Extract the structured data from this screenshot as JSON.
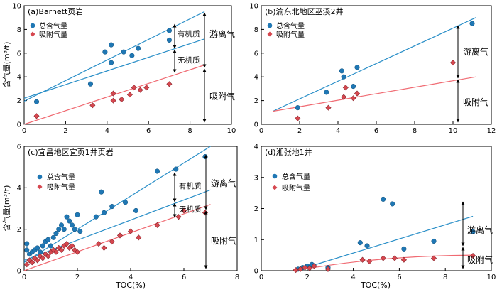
{
  "chart_data": [
    {
      "type": "scatter",
      "title": "(a)Barnett页岩",
      "xlabel": "",
      "ylabel": "含气量(m³/t)",
      "xlim": [
        0,
        10
      ],
      "ylim": [
        0,
        10
      ],
      "xticks": [
        0,
        2,
        4,
        6,
        8,
        10
      ],
      "yticks": [
        0,
        2,
        4,
        6,
        8,
        10
      ],
      "series": [
        {
          "name": "总含气量",
          "color": "#1f77b4",
          "points": [
            [
              0.6,
              1.9
            ],
            [
              3.2,
              3.4
            ],
            [
              3.9,
              6.1
            ],
            [
              4.2,
              6.7
            ],
            [
              4.2,
              5.2
            ],
            [
              4.8,
              6.1
            ],
            [
              5.2,
              5.8
            ],
            [
              5.5,
              6.4
            ],
            [
              7.0,
              7.1
            ],
            [
              7.0,
              7.9
            ]
          ]
        },
        {
          "name": "吸附气量",
          "color": "#d6474f",
          "points": [
            [
              0.6,
              0.7
            ],
            [
              3.3,
              1.6
            ],
            [
              4.3,
              2.0
            ],
            [
              4.3,
              2.6
            ],
            [
              4.7,
              2.1
            ],
            [
              5.1,
              2.5
            ],
            [
              5.3,
              3.1
            ],
            [
              5.6,
              2.9
            ],
            [
              5.9,
              3.1
            ],
            [
              7.0,
              3.4
            ]
          ]
        }
      ],
      "lines": [
        {
          "color": "#2a8fc8",
          "from": [
            0,
            1.95
          ],
          "to": [
            8.7,
            9.5
          ]
        },
        {
          "color": "#2a8fc8",
          "from": [
            0,
            2.2
          ],
          "to": [
            8.7,
            7.2
          ]
        },
        {
          "color": "#f06a72",
          "from": [
            0,
            0
          ],
          "to": [
            8.7,
            5.0
          ]
        }
      ],
      "annotations": [
        "有机质",
        "无机质",
        "游离气",
        "吸附气"
      ],
      "legend_position": "top-left"
    },
    {
      "type": "scatter",
      "title": "(b)渝东北地区巫溪2井",
      "xlabel": "",
      "ylabel": "",
      "xlim": [
        0,
        12
      ],
      "ylim": [
        0,
        10
      ],
      "xticks": [
        0,
        2,
        4,
        6,
        8,
        10,
        12
      ],
      "yticks": [
        0,
        2,
        4,
        6,
        8,
        10
      ],
      "series": [
        {
          "name": "总含气量",
          "color": "#1f77b4",
          "points": [
            [
              1.9,
              1.4
            ],
            [
              3.4,
              2.7
            ],
            [
              4.2,
              4.5
            ],
            [
              4.3,
              4.0
            ],
            [
              4.8,
              3.2
            ],
            [
              5.0,
              4.8
            ],
            [
              11.0,
              8.5
            ]
          ]
        },
        {
          "name": "吸附气量",
          "color": "#d6474f",
          "points": [
            [
              1.9,
              0.5
            ],
            [
              3.5,
              1.4
            ],
            [
              4.3,
              2.3
            ],
            [
              4.4,
              3.1
            ],
            [
              4.8,
              2.2
            ],
            [
              5.0,
              2.6
            ],
            [
              10.0,
              5.2
            ]
          ]
        }
      ],
      "lines": [
        {
          "color": "#2a8fc8",
          "from": [
            0.6,
            1.1
          ],
          "to": [
            11.2,
            9.0
          ]
        },
        {
          "color": "#f06a72",
          "from": [
            0.6,
            1.1
          ],
          "to": [
            11.2,
            4.0
          ]
        }
      ],
      "annotations": [
        "游离气",
        "吸附气"
      ],
      "legend_position": "top-left"
    },
    {
      "type": "scatter",
      "title": "(c)宜昌地区宜页1井页岩",
      "xlabel": "TOC(%)",
      "ylabel": "含气量(m³/t)",
      "xlim": [
        0,
        8
      ],
      "ylim": [
        0,
        6
      ],
      "xticks": [
        0,
        2,
        4,
        6,
        8
      ],
      "yticks": [
        0,
        2,
        4,
        6
      ],
      "series": [
        {
          "name": "总含气量",
          "color": "#1f77b4",
          "points": [
            [
              0.1,
              1.3
            ],
            [
              0.1,
              1.0
            ],
            [
              0.2,
              0.8
            ],
            [
              0.3,
              0.9
            ],
            [
              0.4,
              1.0
            ],
            [
              0.5,
              1.1
            ],
            [
              0.6,
              0.9
            ],
            [
              0.7,
              1.2
            ],
            [
              0.8,
              1.4
            ],
            [
              0.9,
              1.5
            ],
            [
              1.0,
              1.2
            ],
            [
              1.1,
              1.6
            ],
            [
              1.2,
              1.8
            ],
            [
              1.3,
              2.0
            ],
            [
              1.4,
              2.2
            ],
            [
              1.5,
              2.0
            ],
            [
              1.6,
              2.6
            ],
            [
              1.7,
              2.4
            ],
            [
              1.8,
              2.2
            ],
            [
              1.9,
              2.0
            ],
            [
              2.0,
              2.7
            ],
            [
              2.1,
              1.9
            ],
            [
              2.7,
              2.6
            ],
            [
              3.0,
              2.8
            ],
            [
              3.3,
              3.1
            ],
            [
              3.8,
              3.3
            ],
            [
              4.2,
              2.9
            ],
            [
              5.0,
              4.8
            ],
            [
              5.7,
              4.9
            ],
            [
              6.8,
              5.5
            ],
            [
              2.9,
              3.8
            ]
          ]
        },
        {
          "name": "吸附气量",
          "color": "#d6474f",
          "points": [
            [
              0.1,
              0.3
            ],
            [
              0.2,
              0.5
            ],
            [
              0.3,
              0.4
            ],
            [
              0.4,
              0.6
            ],
            [
              0.5,
              0.5
            ],
            [
              0.6,
              0.7
            ],
            [
              0.7,
              0.6
            ],
            [
              0.8,
              0.8
            ],
            [
              0.9,
              0.7
            ],
            [
              1.0,
              0.9
            ],
            [
              1.1,
              1.0
            ],
            [
              1.2,
              0.9
            ],
            [
              1.3,
              1.1
            ],
            [
              1.4,
              1.0
            ],
            [
              1.5,
              1.2
            ],
            [
              1.6,
              1.3
            ],
            [
              1.7,
              1.1
            ],
            [
              1.8,
              1.2
            ],
            [
              1.9,
              1.0
            ],
            [
              2.0,
              0.9
            ],
            [
              2.8,
              1.3
            ],
            [
              3.0,
              1.1
            ],
            [
              3.3,
              1.4
            ],
            [
              3.6,
              1.7
            ],
            [
              4.0,
              1.9
            ],
            [
              4.3,
              1.6
            ],
            [
              5.0,
              2.2
            ],
            [
              5.8,
              2.6
            ],
            [
              6.0,
              2.9
            ],
            [
              6.8,
              2.8
            ]
          ]
        }
      ],
      "lines": [
        {
          "color": "#2a8fc8",
          "from": [
            0,
            0.4
          ],
          "to": [
            7.0,
            6.0
          ]
        },
        {
          "color": "#2a8fc8",
          "from": [
            0,
            0.5
          ],
          "to": [
            7.0,
            3.9
          ]
        },
        {
          "color": "#f06a72",
          "from": [
            0,
            0
          ],
          "to": [
            7.0,
            3.2
          ]
        }
      ],
      "annotations": [
        "有机质",
        "无机质",
        "游离气",
        "吸附气"
      ],
      "legend_position": "top-left"
    },
    {
      "type": "scatter",
      "title": "(d)湘张地1井",
      "xlabel": "TOC(%)",
      "ylabel": "",
      "xlim": [
        0,
        10
      ],
      "ylim": [
        0,
        4
      ],
      "xticks": [
        0,
        2,
        4,
        6,
        8,
        10
      ],
      "yticks": [
        0,
        1,
        2,
        3,
        4
      ],
      "series": [
        {
          "name": "总含气量",
          "color": "#1f77b4",
          "points": [
            [
              1.6,
              0.05
            ],
            [
              1.8,
              0.1
            ],
            [
              2.0,
              0.15
            ],
            [
              2.1,
              0.1
            ],
            [
              2.2,
              0.2
            ],
            [
              2.9,
              0.1
            ],
            [
              4.3,
              0.9
            ],
            [
              4.6,
              0.8
            ],
            [
              5.3,
              2.3
            ],
            [
              5.7,
              2.15
            ],
            [
              6.2,
              0.7
            ],
            [
              7.5,
              0.95
            ],
            [
              9.2,
              1.25
            ]
          ]
        },
        {
          "name": "吸附气量",
          "color": "#d6474f",
          "points": [
            [
              1.5,
              0.02
            ],
            [
              1.7,
              0.05
            ],
            [
              1.9,
              0.1
            ],
            [
              2.1,
              0.08
            ],
            [
              2.3,
              0.15
            ],
            [
              2.9,
              0.05
            ],
            [
              4.4,
              0.35
            ],
            [
              4.7,
              0.3
            ],
            [
              5.3,
              0.4
            ],
            [
              5.8,
              0.4
            ],
            [
              6.2,
              0.35
            ],
            [
              7.5,
              0.4
            ],
            [
              9.2,
              0.48
            ]
          ]
        }
      ],
      "lines": [
        {
          "color": "#2a8fc8",
          "from": [
            1.5,
            0.0
          ],
          "to": [
            9.2,
            1.75
          ]
        },
        {
          "color": "#f06a72",
          "from": [
            1.5,
            0.0
          ],
          "to": [
            9.2,
            0.5
          ],
          "curve": true
        }
      ],
      "annotations": [
        "游离气",
        "吸附气"
      ],
      "legend_position": "top-left"
    }
  ]
}
